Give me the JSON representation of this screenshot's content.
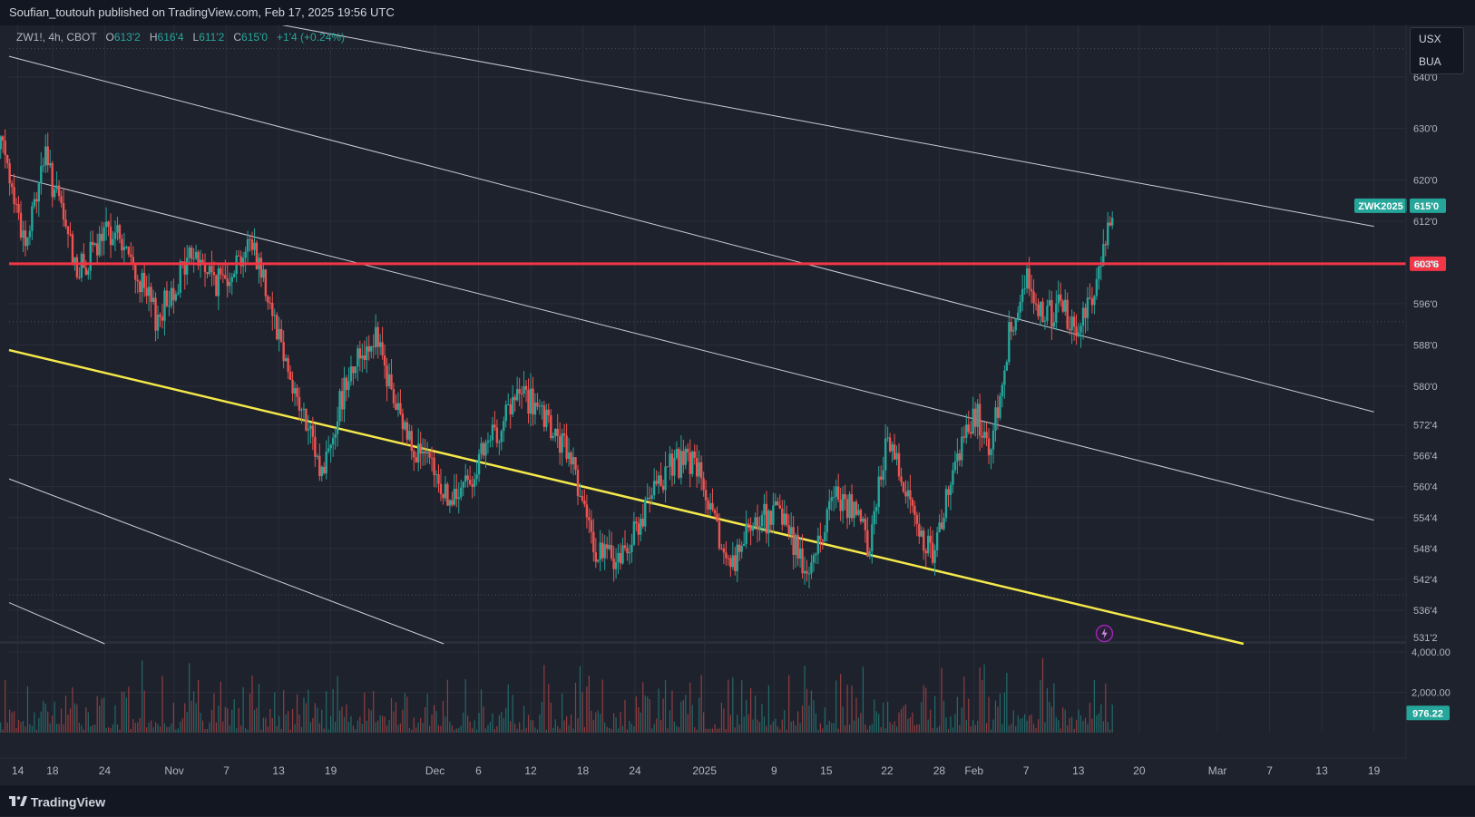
{
  "header": {
    "publisher_line": "Soufian_toutouh published on TradingView.com, Feb 17, 2025 19:56 UTC"
  },
  "footer": {
    "brand": "TradingView"
  },
  "legend": {
    "symbol": "ZW1!, 4h, CBOT",
    "open_label": "O",
    "open": "613'2",
    "high_label": "H",
    "high": "616'4",
    "low_label": "L",
    "low": "611'2",
    "close_label": "C",
    "close": "615'0",
    "change": "+1'4 (+0.24%)"
  },
  "side_buttons": [
    "USX",
    "BUA"
  ],
  "colors": {
    "up": "#26a69a",
    "down": "#ef5350",
    "horizontal_line": "#f23645",
    "yellow_line": "#f5e94a",
    "background": "#1e222d"
  },
  "chart_data": {
    "type": "candlestick",
    "symbol": "ZW1!",
    "interval": "4h",
    "exchange": "CBOT",
    "price_ticks": [
      "640'0",
      "630'0",
      "620'0",
      "612'0",
      "603'6",
      "596'0",
      "588'0",
      "580'0",
      "572'4",
      "566'4",
      "560'4",
      "554'4",
      "548'4",
      "542'4",
      "536'4",
      "531'2"
    ],
    "volume_ticks": [
      "4,000.00",
      "2,000.00"
    ],
    "time_ticks": [
      "14",
      "18",
      "24",
      "Nov",
      "7",
      "13",
      "19",
      "Dec",
      "6",
      "12",
      "18",
      "24",
      "2025",
      "9",
      "15",
      "22",
      "28",
      "Feb",
      "7",
      "13",
      "20",
      "Mar",
      "7",
      "13",
      "19"
    ],
    "price_labels": [
      {
        "text": "ZWK2025",
        "color": "#26a69a"
      },
      {
        "text": "615'0",
        "color": "#26a69a"
      },
      {
        "text": "603'6",
        "color": "#f23645"
      }
    ],
    "volume_label": "976.22",
    "horizontal_line": {
      "price": 603.75
    },
    "price_range": [
      530,
      650
    ],
    "volume_range": [
      0,
      4400
    ],
    "close_path": [
      {
        "date": "2024-10-11",
        "price": 634
      },
      {
        "date": "2024-10-15",
        "price": 607
      },
      {
        "date": "2024-10-17",
        "price": 625
      },
      {
        "date": "2024-10-21",
        "price": 602
      },
      {
        "date": "2024-10-25",
        "price": 611
      },
      {
        "date": "2024-10-30",
        "price": 593
      },
      {
        "date": "2024-11-03",
        "price": 606
      },
      {
        "date": "2024-11-06",
        "price": 600
      },
      {
        "date": "2024-11-10",
        "price": 608
      },
      {
        "date": "2024-11-12",
        "price": 597
      },
      {
        "date": "2024-11-15",
        "price": 578
      },
      {
        "date": "2024-11-18",
        "price": 563
      },
      {
        "date": "2024-11-21",
        "price": 583
      },
      {
        "date": "2024-11-24",
        "price": 590
      },
      {
        "date": "2024-11-27",
        "price": 573
      },
      {
        "date": "2024-11-30",
        "price": 565
      },
      {
        "date": "2024-12-03",
        "price": 557
      },
      {
        "date": "2024-12-06",
        "price": 565
      },
      {
        "date": "2024-12-09",
        "price": 574
      },
      {
        "date": "2024-12-11",
        "price": 579
      },
      {
        "date": "2024-12-14",
        "price": 572
      },
      {
        "date": "2024-12-17",
        "price": 565
      },
      {
        "date": "2024-12-19",
        "price": 549
      },
      {
        "date": "2024-12-22",
        "price": 546
      },
      {
        "date": "2024-12-25",
        "price": 555
      },
      {
        "date": "2024-12-28",
        "price": 565
      },
      {
        "date": "2024-12-31",
        "price": 565
      },
      {
        "date": "2025-01-02",
        "price": 553
      },
      {
        "date": "2025-01-04",
        "price": 545
      },
      {
        "date": "2025-01-07",
        "price": 554
      },
      {
        "date": "2025-01-10",
        "price": 555
      },
      {
        "date": "2025-01-13",
        "price": 543
      },
      {
        "date": "2025-01-16",
        "price": 560
      },
      {
        "date": "2025-01-18",
        "price": 556
      },
      {
        "date": "2025-01-20",
        "price": 549
      },
      {
        "date": "2025-01-22",
        "price": 571
      },
      {
        "date": "2025-01-25",
        "price": 556
      },
      {
        "date": "2025-01-27",
        "price": 547
      },
      {
        "date": "2025-01-30",
        "price": 564
      },
      {
        "date": "2025-02-01",
        "price": 575
      },
      {
        "date": "2025-02-03",
        "price": 568
      },
      {
        "date": "2025-02-05",
        "price": 590
      },
      {
        "date": "2025-02-07",
        "price": 601
      },
      {
        "date": "2025-02-09",
        "price": 594
      },
      {
        "date": "2025-02-11",
        "price": 595
      },
      {
        "date": "2025-02-13",
        "price": 591
      },
      {
        "date": "2025-02-15",
        "price": 600
      },
      {
        "date": "2025-02-17",
        "price": 615
      }
    ]
  }
}
